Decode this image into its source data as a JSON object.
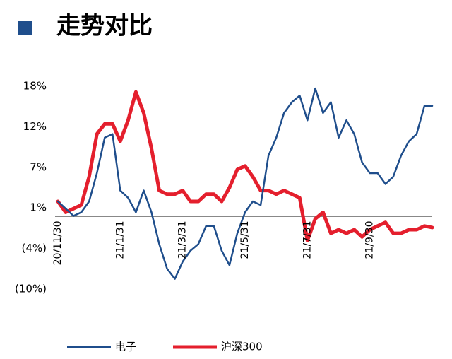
{
  "chart_data": {
    "type": "line",
    "title": "走势对比",
    "categories": [
      "20/11/30",
      null,
      null,
      null,
      null,
      null,
      null,
      null,
      "21/1/31",
      null,
      null,
      null,
      null,
      null,
      null,
      null,
      "21/3/31",
      null,
      null,
      null,
      null,
      null,
      null,
      null,
      "21/5/31",
      null,
      null,
      null,
      null,
      null,
      null,
      null,
      "21/7/31",
      null,
      null,
      null,
      null,
      null,
      null,
      null,
      "21/9/30",
      null,
      null,
      null,
      null,
      null,
      null,
      null,
      null
    ],
    "series": [
      {
        "name": "电子",
        "color": "#1f4e8c",
        "width": 2.5,
        "values": [
          2.1,
          1.1,
          0.1,
          0.6,
          2.1,
          6.0,
          10.9,
          11.4,
          3.6,
          2.6,
          0.6,
          3.6,
          0.6,
          -3.8,
          -7.2,
          -8.6,
          -6.2,
          -4.7,
          -3.8,
          -1.3,
          -1.3,
          -4.7,
          -6.7,
          -2.3,
          0.6,
          2.1,
          1.6,
          8.4,
          10.9,
          14.3,
          15.8,
          16.7,
          13.3,
          17.7,
          14.3,
          15.8,
          10.9,
          13.3,
          11.4,
          7.5,
          6.0,
          6.0,
          4.5,
          5.5,
          8.4,
          10.4,
          11.4,
          15.3,
          15.3
        ]
      },
      {
        "name": "沪深300",
        "color": "#e41f2d",
        "width": 5,
        "values": [
          2.1,
          0.6,
          1.1,
          1.6,
          5.5,
          11.4,
          12.8,
          12.8,
          10.4,
          13.3,
          17.2,
          14.3,
          9.4,
          3.6,
          3.1,
          3.1,
          3.6,
          2.1,
          2.1,
          3.1,
          3.1,
          2.1,
          4.0,
          6.5,
          7.0,
          5.5,
          3.6,
          3.6,
          3.1,
          3.6,
          3.1,
          2.6,
          -3.3,
          -0.3,
          0.6,
          -2.3,
          -1.8,
          -2.3,
          -1.8,
          -2.8,
          -1.8,
          -1.3,
          -0.8,
          -2.3,
          -2.3,
          -1.8,
          -1.8,
          -1.3,
          -1.5
        ]
      }
    ],
    "ylim": [
      -10,
      18
    ],
    "yticks": [
      {
        "value": 18,
        "label": "18%"
      },
      {
        "value": 12.4,
        "label": "12%"
      },
      {
        "value": 6.8,
        "label": "7%"
      },
      {
        "value": 1.2,
        "label": "1%"
      },
      {
        "value": -4.4,
        "label": "(4%)"
      },
      {
        "value": -10,
        "label": "(10%)"
      }
    ],
    "negative_tick_color": "#e41f2d",
    "grid": false
  }
}
